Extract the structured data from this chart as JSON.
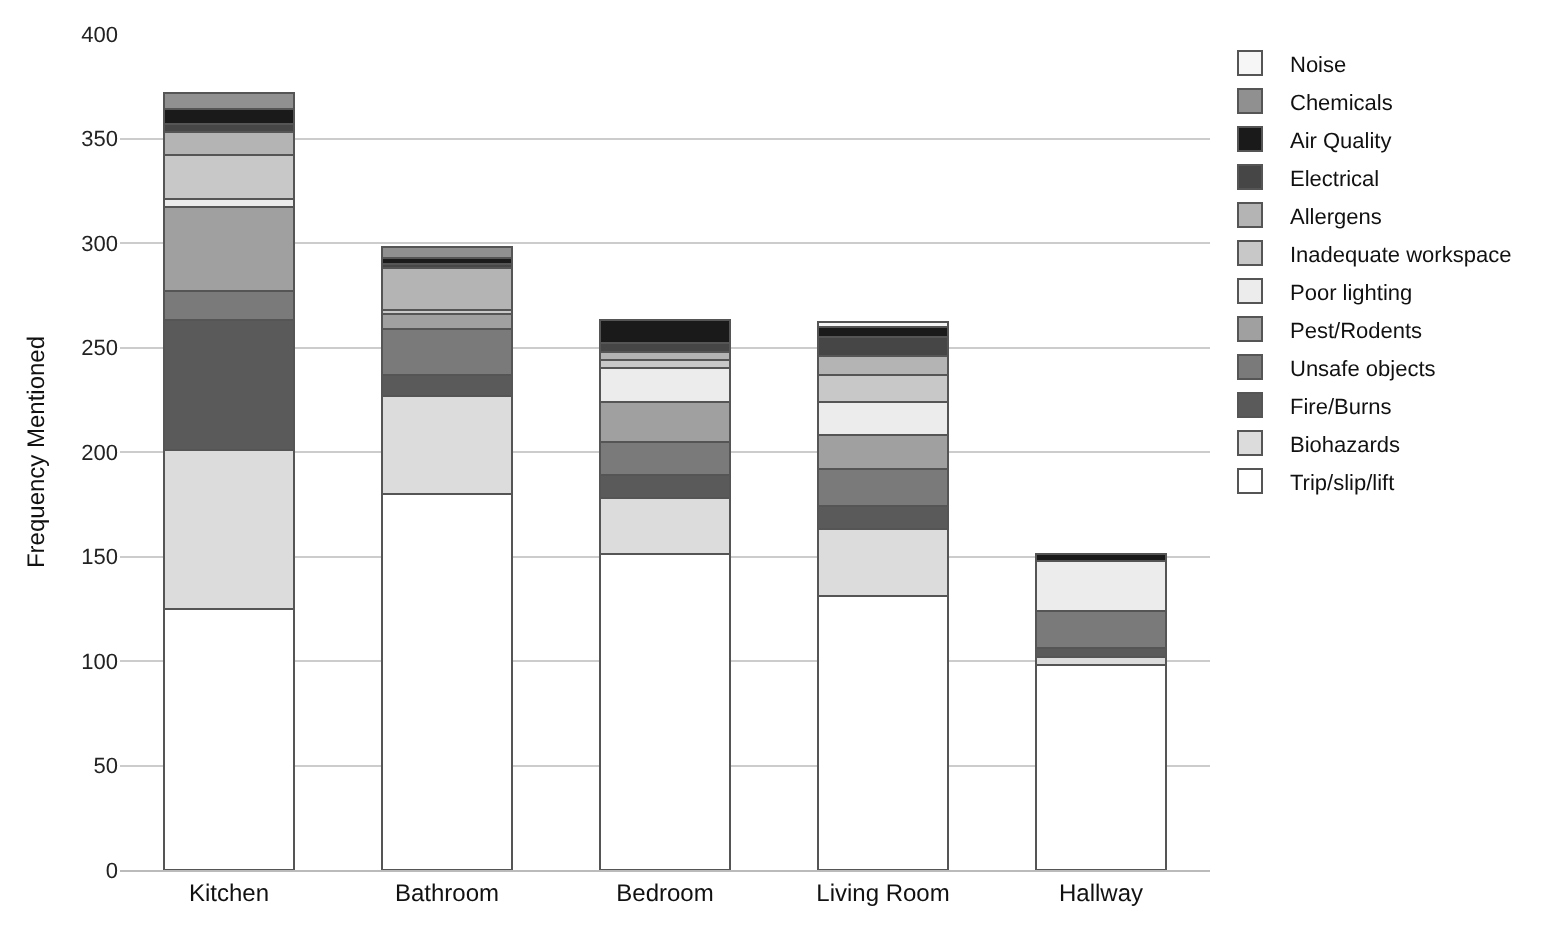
{
  "chart_data": {
    "type": "bar",
    "stacked": true,
    "ylabel": "Frequency Mentioned",
    "categories": [
      "Kitchen",
      "Bathroom",
      "Bedroom",
      "Living Room",
      "Hallway"
    ],
    "series": [
      {
        "name": "Trip/slip/lift",
        "color": "#ffffff",
        "values": [
          125,
          180,
          151,
          131,
          98
        ]
      },
      {
        "name": "Biohazards",
        "color": "#dcdcdc",
        "values": [
          76,
          47,
          27,
          32,
          4
        ]
      },
      {
        "name": "Fire/Burns",
        "color": "#5a5a5a",
        "values": [
          62,
          10,
          11,
          11,
          4
        ]
      },
      {
        "name": "Unsafe objects",
        "color": "#7a7a7a",
        "values": [
          14,
          22,
          16,
          18,
          18
        ]
      },
      {
        "name": "Pest/Rodents",
        "color": "#a0a0a0",
        "values": [
          40,
          7,
          19,
          16,
          0
        ]
      },
      {
        "name": "Poor lighting",
        "color": "#ececec",
        "values": [
          4,
          0,
          16,
          16,
          24
        ]
      },
      {
        "name": "Inadequate workspace",
        "color": "#c8c8c8",
        "values": [
          21,
          2,
          4,
          13,
          0
        ]
      },
      {
        "name": "Allergens",
        "color": "#b4b4b4",
        "values": [
          11,
          20,
          4,
          9,
          0
        ]
      },
      {
        "name": "Electrical",
        "color": "#464646",
        "values": [
          4,
          2,
          4,
          9,
          0
        ]
      },
      {
        "name": "Air Quality",
        "color": "#1a1a1a",
        "values": [
          7,
          3,
          11,
          5,
          3
        ]
      },
      {
        "name": "Chemicals",
        "color": "#909090",
        "values": [
          8,
          5,
          0,
          0,
          0
        ]
      },
      {
        "name": "Noise",
        "color": "#f6f6f6",
        "values": [
          0,
          0,
          0,
          2,
          0
        ]
      }
    ],
    "ylim": [
      0,
      400
    ],
    "yticks": [
      0,
      50,
      100,
      150,
      200,
      250,
      300,
      350,
      400
    ],
    "grid": "y",
    "legend": "right"
  }
}
